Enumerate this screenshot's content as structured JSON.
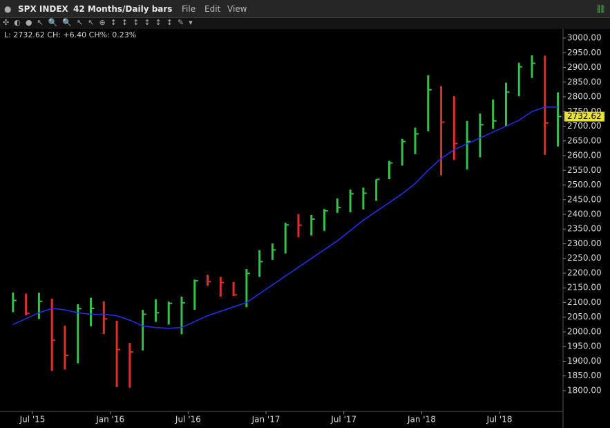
{
  "toolbar": {
    "symbol": "SPX INDEX",
    "period": "42 Months/Daily bars",
    "menus": [
      "File",
      "Edit",
      "View"
    ]
  },
  "chart_data": {
    "type": "ohlc",
    "legend_text": "L: 2732.62 CH: +6.40 CH%: 0.23%",
    "last_label": "2732.62",
    "last_value": 2732.62,
    "x": [
      "2015-05",
      "2015-06",
      "2015-07",
      "2015-08",
      "2015-09",
      "2015-10",
      "2015-11",
      "2015-12",
      "2016-01",
      "2016-02",
      "2016-03",
      "2016-04",
      "2016-05",
      "2016-06",
      "2016-07",
      "2016-08",
      "2016-09",
      "2016-10",
      "2016-11",
      "2016-12",
      "2017-01",
      "2017-02",
      "2017-03",
      "2017-04",
      "2017-05",
      "2017-06",
      "2017-07",
      "2017-08",
      "2017-09",
      "2017-10",
      "2017-11",
      "2017-12",
      "2018-01",
      "2018-02",
      "2018-03",
      "2018-04",
      "2018-05",
      "2018-06",
      "2018-07",
      "2018-08",
      "2018-09",
      "2018-10",
      "2018-11"
    ],
    "series": [
      {
        "name": "SPX INDEX",
        "up_color": "#33c24a",
        "down_color": "#e0302a",
        "values": [
          2107,
          2063,
          2104,
          1972,
          1920,
          2079,
          2080,
          2044,
          1940,
          1932,
          2060,
          2065,
          2097,
          2099,
          2174,
          2171,
          2168,
          2126,
          2199,
          2239,
          2279,
          2364,
          2363,
          2384,
          2412,
          2423,
          2470,
          2472,
          2519,
          2575,
          2648,
          2674,
          2824,
          2714,
          2641,
          2648,
          2705,
          2718,
          2816,
          2902,
          2914,
          2711,
          2733
        ],
        "high": [
          2134,
          2130,
          2133,
          2113,
          2021,
          2094,
          2116,
          2104,
          2038,
          1962,
          2075,
          2111,
          2103,
          2120,
          2178,
          2194,
          2187,
          2170,
          2214,
          2278,
          2301,
          2371,
          2401,
          2398,
          2418,
          2454,
          2484,
          2491,
          2519,
          2582,
          2657,
          2695,
          2873,
          2836,
          2802,
          2718,
          2743,
          2791,
          2848,
          2916,
          2941,
          2940,
          2815
        ],
        "low": [
          2067,
          2056,
          2044,
          1867,
          1872,
          1893,
          2019,
          1993,
          1812,
          1810,
          1937,
          2034,
          2025,
          1992,
          2075,
          2157,
          2120,
          2122,
          2084,
          2187,
          2245,
          2267,
          2322,
          2328,
          2344,
          2405,
          2407,
          2417,
          2446,
          2520,
          2566,
          2605,
          2683,
          2533,
          2585,
          2553,
          2594,
          2691,
          2699,
          2802,
          2864,
          2603,
          2631
        ]
      },
      {
        "color": "#2233ee",
        "values": [
          2025,
          2045,
          2065,
          2080,
          2075,
          2065,
          2060,
          2060,
          2055,
          2040,
          2020,
          2015,
          2012,
          2015,
          2035,
          2055,
          2070,
          2085,
          2100,
          2130,
          2160,
          2190,
          2220,
          2250,
          2280,
          2310,
          2345,
          2380,
          2410,
          2440,
          2470,
          2505,
          2550,
          2590,
          2620,
          2640,
          2660,
          2680,
          2700,
          2720,
          2750,
          2765,
          2765
        ]
      }
    ],
    "ylim": [
      1729.4,
      3030.6
    ],
    "yticks": [
      {
        "value": 1800,
        "label": "1800.00"
      },
      {
        "value": 1850,
        "label": "1850.00"
      },
      {
        "value": 1900,
        "label": "1900.00"
      },
      {
        "value": 1950,
        "label": "1950.00"
      },
      {
        "value": 2000,
        "label": "2000.00"
      },
      {
        "value": 2050,
        "label": "2050.00"
      },
      {
        "value": 2100,
        "label": "2100.00"
      },
      {
        "value": 2150,
        "label": "2150.00"
      },
      {
        "value": 2200,
        "label": "2200.00"
      },
      {
        "value": 2250,
        "label": "2250.00"
      },
      {
        "value": 2300,
        "label": "2300.00"
      },
      {
        "value": 2350,
        "label": "2350.00"
      },
      {
        "value": 2400,
        "label": "2400.00"
      },
      {
        "value": 2450,
        "label": "2450.00"
      },
      {
        "value": 2500,
        "label": "2500.00"
      },
      {
        "value": 2550,
        "label": "2550.00"
      },
      {
        "value": 2600,
        "label": "2600.00"
      },
      {
        "value": 2650,
        "label": "2650.00"
      },
      {
        "value": 2700,
        "label": "2700.00"
      },
      {
        "value": 2750,
        "label": "2750.00"
      },
      {
        "value": 2800,
        "label": "2800.00"
      },
      {
        "value": 2850,
        "label": "2850.00"
      },
      {
        "value": 2900,
        "label": "2900.00"
      },
      {
        "value": 2950,
        "label": "2950.00"
      },
      {
        "value": 3000,
        "label": "3000.00"
      }
    ],
    "xticks": [
      {
        "value": "2015-07",
        "label": "Jul '15"
      },
      {
        "value": "2016-01",
        "label": "Jan '16"
      },
      {
        "value": "2016-07",
        "label": "Jul '16"
      },
      {
        "value": "2017-01",
        "label": "Jan '17"
      },
      {
        "value": "2017-07",
        "label": "Jul '17"
      },
      {
        "value": "2018-01",
        "label": "Jan '18"
      },
      {
        "value": "2018-07",
        "label": "Jul '18"
      }
    ],
    "last_color": "#e8e040"
  }
}
